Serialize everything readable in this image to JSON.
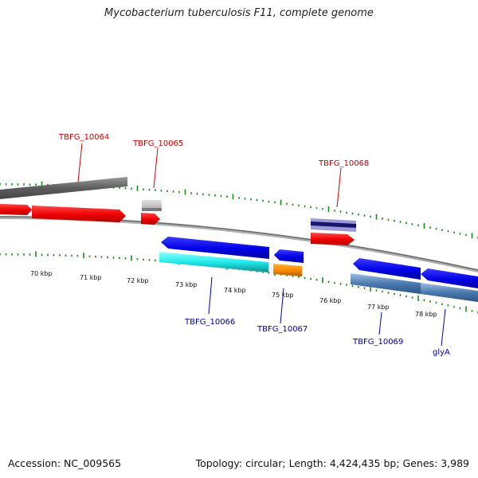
{
  "title": "Mycobacterium tuberculosis F11, complete genome",
  "footer": {
    "accession": "Accession: NC_009565",
    "summary": "Topology: circular; Length: 4,424,435 bp; Genes: 3,989"
  },
  "ticks": [
    "70 kbp",
    "71 kbp",
    "72 kbp",
    "73 kbp",
    "74 kbp",
    "75 kbp",
    "76 kbp",
    "77 kbp",
    "78 kbp"
  ],
  "genes": {
    "forward": [
      "TBFG_10064",
      "TBFG_10065",
      "TBFG_10068"
    ],
    "reverse": [
      "TBFG_10066",
      "TBFG_10067",
      "TBFG_10069",
      "glyA"
    ]
  },
  "colors": {
    "forward_label": "#cc0000",
    "reverse_label": "#0000aa",
    "cds_forward": "#ff0000",
    "cds_reverse": "#0000ee",
    "tick": "#1a8a1a",
    "backbone": "#808080",
    "gene_10064": "#666666",
    "gene_10065": "#c8c8c8",
    "gene_10068": "#20208a",
    "gene_10066": "#22eeee",
    "gene_10067": "#ff8c00",
    "gene_10069": "#4a7ab0"
  }
}
